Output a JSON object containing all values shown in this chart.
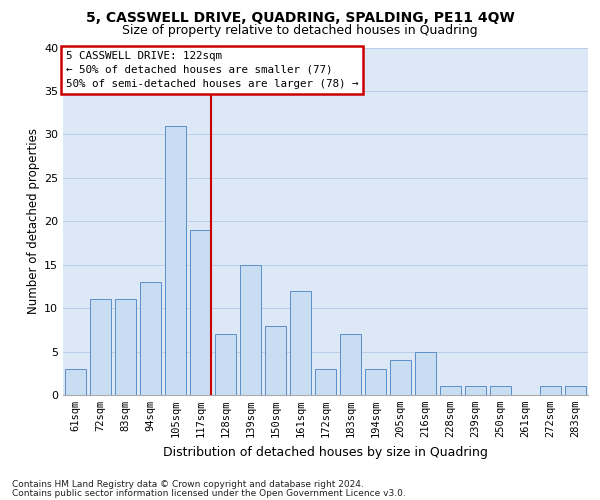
{
  "title": "5, CASSWELL DRIVE, QUADRING, SPALDING, PE11 4QW",
  "subtitle": "Size of property relative to detached houses in Quadring",
  "xlabel": "Distribution of detached houses by size in Quadring",
  "ylabel": "Number of detached properties",
  "categories": [
    "61sqm",
    "72sqm",
    "83sqm",
    "94sqm",
    "105sqm",
    "117sqm",
    "128sqm",
    "139sqm",
    "150sqm",
    "161sqm",
    "172sqm",
    "183sqm",
    "194sqm",
    "205sqm",
    "216sqm",
    "228sqm",
    "239sqm",
    "250sqm",
    "261sqm",
    "272sqm",
    "283sqm"
  ],
  "values": [
    3,
    11,
    11,
    13,
    31,
    19,
    7,
    15,
    8,
    12,
    3,
    7,
    3,
    4,
    5,
    1,
    1,
    1,
    0,
    1,
    1
  ],
  "bar_color": "#c9ddf2",
  "bar_edge_color": "#5b8fc9",
  "red_line_color": "#cc0000",
  "grid_color": "#b8cfe8",
  "background_color": "#dce8f5",
  "annotation_line1": "5 CASSWELL DRIVE: 122sqm",
  "annotation_line2": "← 50% of detached houses are smaller (77)",
  "annotation_line3": "50% of semi-detached houses are larger (78) →",
  "footer_line1": "Contains HM Land Registry data © Crown copyright and database right 2024.",
  "footer_line2": "Contains public sector information licensed under the Open Government Licence v3.0.",
  "ylim": [
    0,
    40
  ],
  "yticks": [
    0,
    5,
    10,
    15,
    20,
    25,
    30,
    35,
    40
  ],
  "red_line_index": 5.43
}
